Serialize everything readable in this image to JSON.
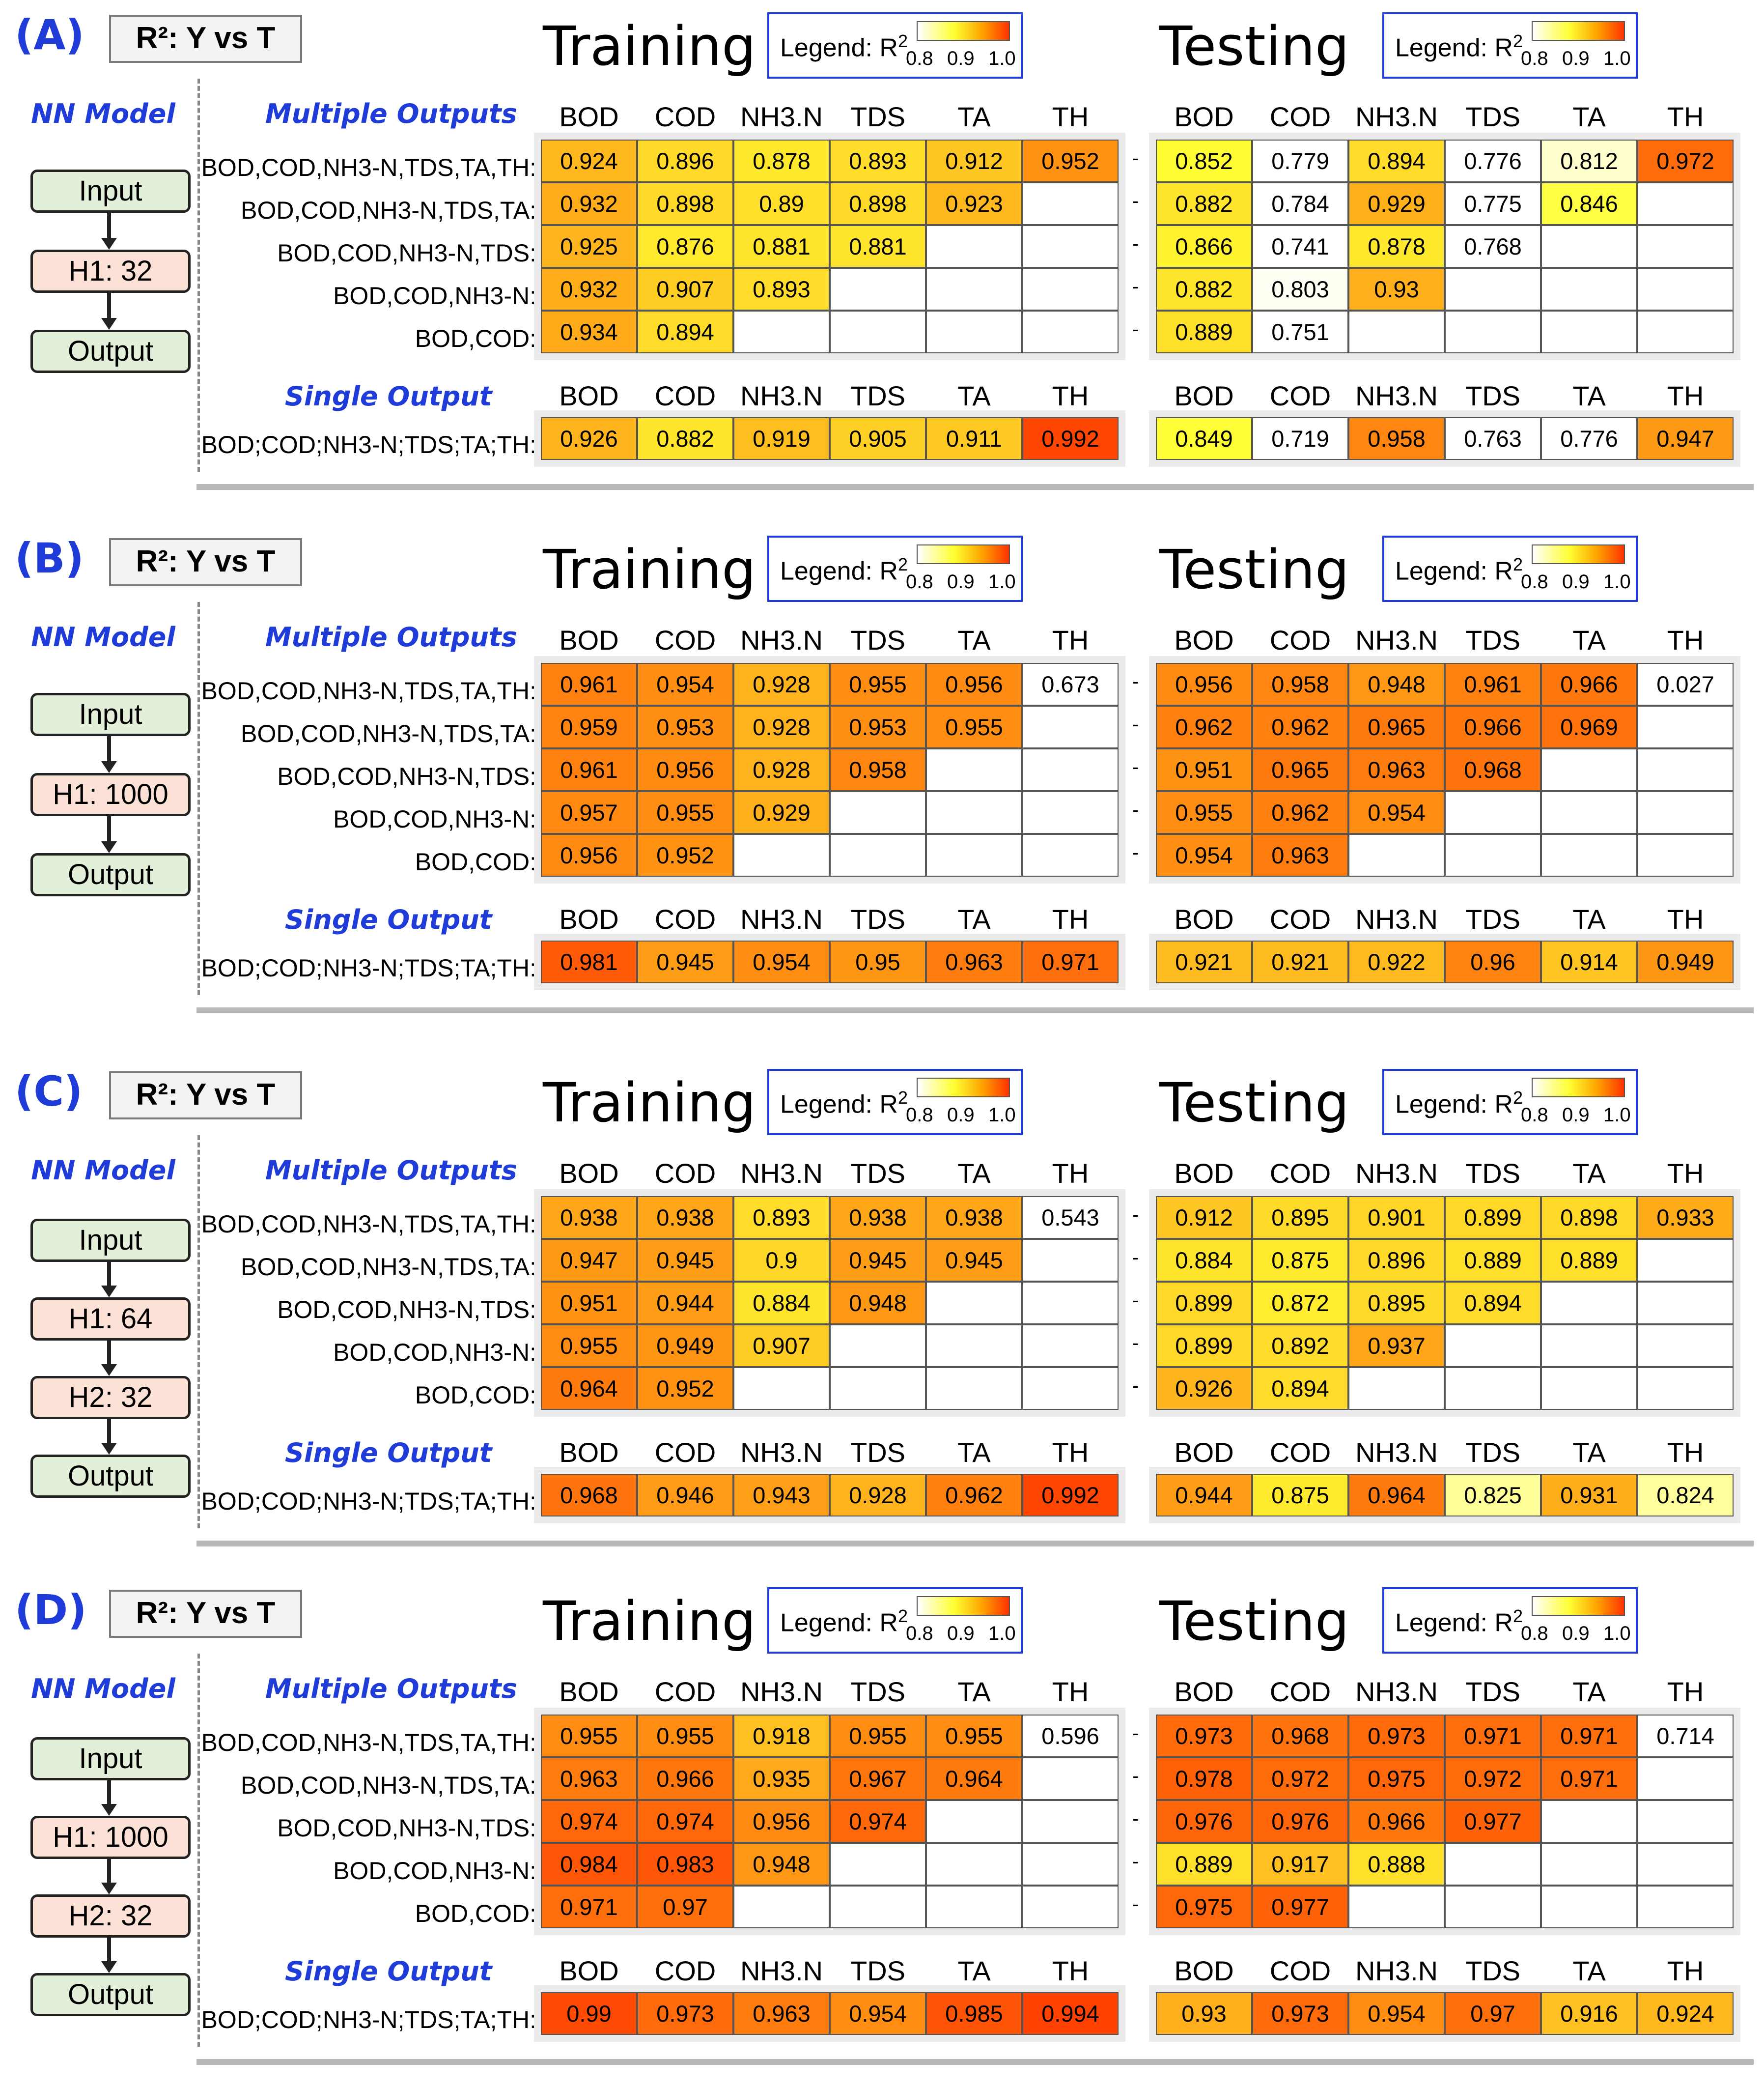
{
  "legend": {
    "title": "Legend: R",
    "superscript": "2",
    "ticks": [
      "0.8",
      "0.9",
      "1.0"
    ]
  },
  "common": {
    "r2_label": "R²: Y vs T",
    "nn_model": "NN Model",
    "multiple_outputs": "Multiple Outputs",
    "single_output": "Single Output",
    "training": "Training",
    "testing": "Testing",
    "columns": [
      "BOD",
      "COD",
      "NH3.N",
      "TDS",
      "TA",
      "TH"
    ],
    "multi_rows": [
      "BOD,COD,NH3-N,TDS,TA,TH:",
      "BOD,COD,NH3-N,TDS,TA:",
      "BOD,COD,NH3-N,TDS:",
      "BOD,COD,NH3-N:",
      "BOD,COD:"
    ],
    "single_row": "BOD;COD;NH3-N;TDS;TA;TH:"
  },
  "chart_data": [
    {
      "type": "heatmap",
      "panel": "(A)",
      "nn_layers": [
        "Input",
        "H1: 32",
        "Output"
      ],
      "training_multi": [
        [
          0.924,
          0.896,
          0.878,
          0.893,
          0.912,
          0.952
        ],
        [
          0.932,
          0.898,
          0.89,
          0.898,
          0.923
        ],
        [
          0.925,
          0.876,
          0.881,
          0.881
        ],
        [
          0.932,
          0.907,
          0.893
        ],
        [
          0.934,
          0.894
        ]
      ],
      "training_single": [
        0.926,
        0.882,
        0.919,
        0.905,
        0.911,
        0.992
      ],
      "testing_multi": [
        [
          0.852,
          0.779,
          0.894,
          0.776,
          0.812,
          0.972
        ],
        [
          0.882,
          0.784,
          0.929,
          0.775,
          0.846
        ],
        [
          0.866,
          0.741,
          0.878,
          0.768
        ],
        [
          0.882,
          0.803,
          0.93
        ],
        [
          0.889,
          0.751
        ]
      ],
      "testing_single": [
        0.849,
        0.719,
        0.958,
        0.763,
        0.776,
        0.947
      ]
    },
    {
      "type": "heatmap",
      "panel": "(B)",
      "nn_layers": [
        "Input",
        "H1: 1000",
        "Output"
      ],
      "training_multi": [
        [
          0.961,
          0.954,
          0.928,
          0.955,
          0.956,
          0.673
        ],
        [
          0.959,
          0.953,
          0.928,
          0.953,
          0.955
        ],
        [
          0.961,
          0.956,
          0.928,
          0.958
        ],
        [
          0.957,
          0.955,
          0.929
        ],
        [
          0.956,
          0.952
        ]
      ],
      "training_single": [
        0.981,
        0.945,
        0.954,
        0.95,
        0.963,
        0.971
      ],
      "testing_multi": [
        [
          0.956,
          0.958,
          0.948,
          0.961,
          0.966,
          0.027
        ],
        [
          0.962,
          0.962,
          0.965,
          0.966,
          0.969
        ],
        [
          0.951,
          0.965,
          0.963,
          0.968
        ],
        [
          0.955,
          0.962,
          0.954
        ],
        [
          0.954,
          0.963
        ]
      ],
      "testing_single": [
        0.921,
        0.921,
        0.922,
        0.96,
        0.914,
        0.949
      ]
    },
    {
      "type": "heatmap",
      "panel": "(C)",
      "nn_layers": [
        "Input",
        "H1: 64",
        "H2: 32",
        "Output"
      ],
      "training_multi": [
        [
          0.938,
          0.938,
          0.893,
          0.938,
          0.938,
          0.543
        ],
        [
          0.947,
          0.945,
          0.9,
          0.945,
          0.945
        ],
        [
          0.951,
          0.944,
          0.884,
          0.948
        ],
        [
          0.955,
          0.949,
          0.907
        ],
        [
          0.964,
          0.952
        ]
      ],
      "training_single": [
        0.968,
        0.946,
        0.943,
        0.928,
        0.962,
        0.992
      ],
      "testing_multi": [
        [
          0.912,
          0.895,
          0.901,
          0.899,
          0.898,
          0.933
        ],
        [
          0.884,
          0.875,
          0.896,
          0.889,
          0.889
        ],
        [
          0.899,
          0.872,
          0.895,
          0.894
        ],
        [
          0.899,
          0.892,
          0.937
        ],
        [
          0.926,
          0.894
        ]
      ],
      "testing_single": [
        0.944,
        0.875,
        0.964,
        0.825,
        0.931,
        0.824
      ]
    },
    {
      "type": "heatmap",
      "panel": "(D)",
      "nn_layers": [
        "Input",
        "H1: 1000",
        "H2: 32",
        "Output"
      ],
      "training_multi": [
        [
          0.955,
          0.955,
          0.918,
          0.955,
          0.955,
          0.596
        ],
        [
          0.963,
          0.966,
          0.935,
          0.967,
          0.964
        ],
        [
          0.974,
          0.974,
          0.956,
          0.974
        ],
        [
          0.984,
          0.983,
          0.948
        ],
        [
          0.971,
          0.97
        ]
      ],
      "training_single": [
        0.99,
        0.973,
        0.963,
        0.954,
        0.985,
        0.994
      ],
      "testing_multi": [
        [
          0.973,
          0.968,
          0.973,
          0.971,
          0.971,
          0.714
        ],
        [
          0.978,
          0.972,
          0.975,
          0.972,
          0.971
        ],
        [
          0.976,
          0.976,
          0.966,
          0.977
        ],
        [
          0.889,
          0.917,
          0.888
        ],
        [
          0.975,
          0.977
        ]
      ],
      "testing_single": [
        0.93,
        0.973,
        0.954,
        0.97,
        0.916,
        0.924
      ]
    }
  ]
}
